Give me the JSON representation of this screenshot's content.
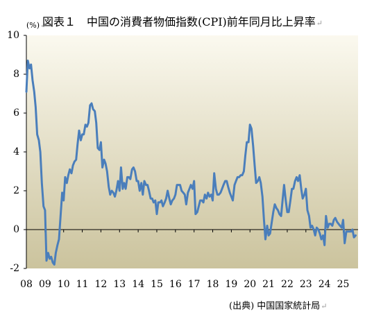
{
  "title": "図表１　中国の消費者物価指数(CPI)前年同月比上昇率",
  "unit_label": "(%)",
  "source_note": "(出典) 中国国家統計局",
  "paragraph_mark": "↵",
  "colors": {
    "line": "#4a7ebb",
    "plot_bg_top": "#fbf9ef",
    "plot_bg_bottom": "#cbc39d",
    "axis": "#000000"
  },
  "chart_data": {
    "type": "line",
    "title": "図表１　中国の消費者物価指数(CPI)前年同月比上昇率",
    "ylabel": "(%)",
    "xlabel": "",
    "ylim": [
      -2,
      10
    ],
    "yticks": [
      -2,
      0,
      2,
      4,
      6,
      8,
      10
    ],
    "xlim": [
      2008,
      2025.8
    ],
    "xticks": [
      {
        "label": "08",
        "x": 2008
      },
      {
        "label": "09",
        "x": 2009
      },
      {
        "label": "10",
        "x": 2010
      },
      {
        "label": "11",
        "x": 2011
      },
      {
        "label": "12",
        "x": 2012
      },
      {
        "label": "13",
        "x": 2013
      },
      {
        "label": "14",
        "x": 2014
      },
      {
        "label": "15",
        "x": 2015
      },
      {
        "label": "16",
        "x": 2016
      },
      {
        "label": "17",
        "x": 2017
      },
      {
        "label": "18",
        "x": 2018
      },
      {
        "label": "19",
        "x": 2019
      },
      {
        "label": "20",
        "x": 2020
      },
      {
        "label": "21",
        "x": 2021
      },
      {
        "label": "22",
        "x": 2022
      },
      {
        "label": "23",
        "x": 2023
      },
      {
        "label": "24",
        "x": 2024
      },
      {
        "label": "25",
        "x": 2025
      }
    ],
    "grid": false,
    "legend": "none",
    "series": [
      {
        "points": [
          [
            2008.0,
            7.1
          ],
          [
            2008.08,
            8.7
          ],
          [
            2008.17,
            8.3
          ],
          [
            2008.25,
            8.5
          ],
          [
            2008.33,
            7.7
          ],
          [
            2008.42,
            7.1
          ],
          [
            2008.5,
            6.3
          ],
          [
            2008.58,
            4.9
          ],
          [
            2008.67,
            4.6
          ],
          [
            2008.75,
            4.0
          ],
          [
            2008.83,
            2.4
          ],
          [
            2008.92,
            1.2
          ],
          [
            2009.0,
            1.0
          ],
          [
            2009.08,
            -1.6
          ],
          [
            2009.17,
            -1.2
          ],
          [
            2009.25,
            -1.5
          ],
          [
            2009.33,
            -1.4
          ],
          [
            2009.42,
            -1.7
          ],
          [
            2009.5,
            -1.8
          ],
          [
            2009.58,
            -1.2
          ],
          [
            2009.67,
            -0.8
          ],
          [
            2009.75,
            -0.5
          ],
          [
            2009.83,
            0.6
          ],
          [
            2009.92,
            1.9
          ],
          [
            2010.0,
            1.5
          ],
          [
            2010.08,
            2.7
          ],
          [
            2010.17,
            2.4
          ],
          [
            2010.25,
            2.8
          ],
          [
            2010.33,
            3.1
          ],
          [
            2010.42,
            2.9
          ],
          [
            2010.5,
            3.3
          ],
          [
            2010.58,
            3.5
          ],
          [
            2010.67,
            3.6
          ],
          [
            2010.75,
            4.4
          ],
          [
            2010.83,
            5.1
          ],
          [
            2010.92,
            4.6
          ],
          [
            2011.0,
            4.9
          ],
          [
            2011.08,
            4.9
          ],
          [
            2011.17,
            5.4
          ],
          [
            2011.25,
            5.3
          ],
          [
            2011.33,
            5.5
          ],
          [
            2011.42,
            6.4
          ],
          [
            2011.5,
            6.5
          ],
          [
            2011.58,
            6.2
          ],
          [
            2011.67,
            6.1
          ],
          [
            2011.75,
            5.5
          ],
          [
            2011.83,
            4.2
          ],
          [
            2011.92,
            4.1
          ],
          [
            2012.0,
            4.5
          ],
          [
            2012.08,
            3.2
          ],
          [
            2012.17,
            3.6
          ],
          [
            2012.25,
            3.4
          ],
          [
            2012.33,
            3.0
          ],
          [
            2012.42,
            2.2
          ],
          [
            2012.5,
            1.8
          ],
          [
            2012.58,
            2.0
          ],
          [
            2012.67,
            1.9
          ],
          [
            2012.75,
            1.7
          ],
          [
            2012.83,
            2.0
          ],
          [
            2012.92,
            2.5
          ],
          [
            2013.0,
            2.0
          ],
          [
            2013.08,
            3.2
          ],
          [
            2013.17,
            2.1
          ],
          [
            2013.25,
            2.4
          ],
          [
            2013.33,
            2.1
          ],
          [
            2013.42,
            2.7
          ],
          [
            2013.5,
            2.7
          ],
          [
            2013.58,
            2.6
          ],
          [
            2013.67,
            3.1
          ],
          [
            2013.75,
            3.2
          ],
          [
            2013.83,
            3.0
          ],
          [
            2013.92,
            2.5
          ],
          [
            2014.0,
            2.5
          ],
          [
            2014.08,
            2.0
          ],
          [
            2014.17,
            2.4
          ],
          [
            2014.25,
            1.8
          ],
          [
            2014.33,
            2.5
          ],
          [
            2014.42,
            2.3
          ],
          [
            2014.5,
            2.3
          ],
          [
            2014.58,
            2.0
          ],
          [
            2014.67,
            1.6
          ],
          [
            2014.75,
            1.6
          ],
          [
            2014.83,
            1.4
          ],
          [
            2014.92,
            1.5
          ],
          [
            2015.0,
            0.8
          ],
          [
            2015.08,
            1.4
          ],
          [
            2015.17,
            1.4
          ],
          [
            2015.25,
            1.5
          ],
          [
            2015.33,
            1.2
          ],
          [
            2015.42,
            1.4
          ],
          [
            2015.5,
            1.6
          ],
          [
            2015.58,
            2.0
          ],
          [
            2015.67,
            1.6
          ],
          [
            2015.75,
            1.3
          ],
          [
            2015.83,
            1.5
          ],
          [
            2015.92,
            1.6
          ],
          [
            2016.0,
            1.8
          ],
          [
            2016.08,
            2.3
          ],
          [
            2016.17,
            2.3
          ],
          [
            2016.25,
            2.3
          ],
          [
            2016.33,
            2.0
          ],
          [
            2016.42,
            1.9
          ],
          [
            2016.5,
            1.8
          ],
          [
            2016.58,
            1.3
          ],
          [
            2016.67,
            1.9
          ],
          [
            2016.75,
            2.1
          ],
          [
            2016.83,
            2.3
          ],
          [
            2016.92,
            2.1
          ],
          [
            2017.0,
            2.5
          ],
          [
            2017.08,
            0.8
          ],
          [
            2017.17,
            0.9
          ],
          [
            2017.25,
            1.2
          ],
          [
            2017.33,
            1.5
          ],
          [
            2017.42,
            1.5
          ],
          [
            2017.5,
            1.4
          ],
          [
            2017.58,
            1.8
          ],
          [
            2017.67,
            1.6
          ],
          [
            2017.75,
            1.9
          ],
          [
            2017.83,
            1.7
          ],
          [
            2017.92,
            1.8
          ],
          [
            2018.0,
            1.5
          ],
          [
            2018.08,
            2.9
          ],
          [
            2018.17,
            2.1
          ],
          [
            2018.25,
            1.8
          ],
          [
            2018.33,
            1.8
          ],
          [
            2018.42,
            1.9
          ],
          [
            2018.5,
            2.1
          ],
          [
            2018.58,
            2.3
          ],
          [
            2018.67,
            2.5
          ],
          [
            2018.75,
            2.5
          ],
          [
            2018.83,
            2.2
          ],
          [
            2018.92,
            1.9
          ],
          [
            2019.0,
            1.7
          ],
          [
            2019.08,
            1.5
          ],
          [
            2019.17,
            2.3
          ],
          [
            2019.25,
            2.5
          ],
          [
            2019.33,
            2.7
          ],
          [
            2019.42,
            2.7
          ],
          [
            2019.5,
            2.8
          ],
          [
            2019.58,
            2.8
          ],
          [
            2019.67,
            3.0
          ],
          [
            2019.75,
            3.8
          ],
          [
            2019.83,
            4.5
          ],
          [
            2019.92,
            4.5
          ],
          [
            2020.0,
            5.4
          ],
          [
            2020.08,
            5.2
          ],
          [
            2020.17,
            4.3
          ],
          [
            2020.25,
            3.3
          ],
          [
            2020.33,
            2.4
          ],
          [
            2020.42,
            2.5
          ],
          [
            2020.5,
            2.7
          ],
          [
            2020.58,
            2.4
          ],
          [
            2020.67,
            1.7
          ],
          [
            2020.75,
            0.5
          ],
          [
            2020.83,
            -0.5
          ],
          [
            2020.92,
            0.2
          ],
          [
            2021.0,
            -0.3
          ],
          [
            2021.08,
            -0.2
          ],
          [
            2021.17,
            0.4
          ],
          [
            2021.25,
            0.9
          ],
          [
            2021.33,
            1.3
          ],
          [
            2021.42,
            1.1
          ],
          [
            2021.5,
            1.0
          ],
          [
            2021.58,
            0.8
          ],
          [
            2021.67,
            0.7
          ],
          [
            2021.75,
            1.5
          ],
          [
            2021.83,
            2.3
          ],
          [
            2021.92,
            1.5
          ],
          [
            2022.0,
            0.9
          ],
          [
            2022.08,
            0.9
          ],
          [
            2022.17,
            1.5
          ],
          [
            2022.25,
            2.1
          ],
          [
            2022.33,
            2.1
          ],
          [
            2022.42,
            2.5
          ],
          [
            2022.5,
            2.7
          ],
          [
            2022.58,
            2.5
          ],
          [
            2022.67,
            2.8
          ],
          [
            2022.75,
            2.1
          ],
          [
            2022.83,
            1.6
          ],
          [
            2022.92,
            1.8
          ],
          [
            2023.0,
            2.1
          ],
          [
            2023.08,
            1.0
          ],
          [
            2023.17,
            0.7
          ],
          [
            2023.25,
            0.1
          ],
          [
            2023.33,
            0.2
          ],
          [
            2023.42,
            0.0
          ],
          [
            2023.5,
            -0.3
          ],
          [
            2023.58,
            0.1
          ],
          [
            2023.67,
            0.0
          ],
          [
            2023.75,
            -0.2
          ],
          [
            2023.83,
            -0.5
          ],
          [
            2023.92,
            -0.3
          ],
          [
            2024.0,
            -0.8
          ],
          [
            2024.08,
            0.7
          ],
          [
            2024.17,
            0.1
          ],
          [
            2024.25,
            0.3
          ],
          [
            2024.33,
            0.3
          ],
          [
            2024.42,
            0.2
          ],
          [
            2024.5,
            0.5
          ],
          [
            2024.58,
            0.6
          ],
          [
            2024.67,
            0.4
          ],
          [
            2024.75,
            0.3
          ],
          [
            2024.83,
            0.2
          ],
          [
            2024.92,
            0.1
          ],
          [
            2025.0,
            0.5
          ],
          [
            2025.08,
            -0.7
          ],
          [
            2025.17,
            -0.1
          ],
          [
            2025.25,
            -0.1
          ],
          [
            2025.33,
            -0.1
          ],
          [
            2025.42,
            -0.1
          ],
          [
            2025.5,
            0.0
          ],
          [
            2025.58,
            -0.4
          ],
          [
            2025.67,
            -0.3
          ]
        ]
      }
    ]
  }
}
